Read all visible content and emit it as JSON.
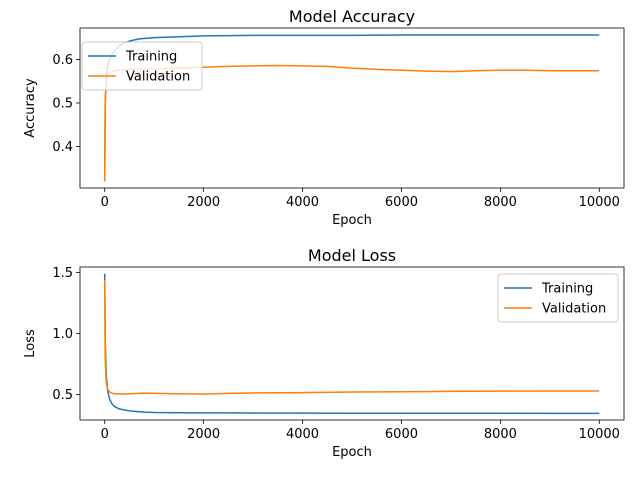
{
  "colors": {
    "training": "#1f77b4",
    "validation": "#ff7f0e",
    "axis": "#000000",
    "background": "#ffffff"
  },
  "chart_data": [
    {
      "type": "line",
      "title": "Model Accuracy",
      "xlabel": "Epoch",
      "ylabel": "Accuracy",
      "xlim": [
        -500,
        10500
      ],
      "ylim": [
        0.305,
        0.672
      ],
      "xticks": [
        0,
        2000,
        4000,
        6000,
        8000,
        10000
      ],
      "xtick_labels": [
        "0",
        "2000",
        "4000",
        "6000",
        "8000",
        "10000"
      ],
      "yticks": [
        0.4,
        0.5,
        0.6
      ],
      "ytick_labels": [
        "0.4",
        "0.5",
        "0.6"
      ],
      "grid": false,
      "legend": {
        "position": "upper left",
        "entries": [
          "Training",
          "Validation"
        ]
      },
      "series": [
        {
          "name": "Training",
          "color": "#1f77b4",
          "x": [
            0,
            10,
            30,
            60,
            100,
            150,
            200,
            300,
            400,
            500,
            700,
            1000,
            1500,
            2000,
            3000,
            4000,
            5000,
            6000,
            7000,
            8000,
            9000,
            10000
          ],
          "y": [
            0.33,
            0.5,
            0.56,
            0.585,
            0.6,
            0.612,
            0.62,
            0.632,
            0.638,
            0.642,
            0.647,
            0.65,
            0.652,
            0.654,
            0.655,
            0.655,
            0.655,
            0.656,
            0.656,
            0.656,
            0.656,
            0.656
          ]
        },
        {
          "name": "Validation",
          "color": "#ff7f0e",
          "x": [
            0,
            10,
            30,
            60,
            100,
            150,
            200,
            300,
            500,
            1000,
            1500,
            2000,
            2500,
            3000,
            3500,
            4000,
            4500,
            5000,
            5500,
            6000,
            6500,
            7000,
            7500,
            8000,
            8500,
            9000,
            9500,
            10000
          ],
          "y": [
            0.32,
            0.5,
            0.55,
            0.565,
            0.57,
            0.572,
            0.574,
            0.575,
            0.577,
            0.578,
            0.58,
            0.582,
            0.584,
            0.585,
            0.586,
            0.585,
            0.584,
            0.58,
            0.577,
            0.575,
            0.573,
            0.572,
            0.574,
            0.575,
            0.575,
            0.574,
            0.574,
            0.574
          ]
        }
      ]
    },
    {
      "type": "line",
      "title": "Model Loss",
      "xlabel": "Epoch",
      "ylabel": "Loss",
      "xlim": [
        -500,
        10500
      ],
      "ylim": [
        0.29,
        1.545
      ],
      "xticks": [
        0,
        2000,
        4000,
        6000,
        8000,
        10000
      ],
      "xtick_labels": [
        "0",
        "2000",
        "4000",
        "6000",
        "8000",
        "10000"
      ],
      "yticks": [
        0.5,
        1.0,
        1.5
      ],
      "ytick_labels": [
        "0.5",
        "1.0",
        "1.5"
      ],
      "grid": false,
      "legend": {
        "position": "upper right",
        "entries": [
          "Training",
          "Validation"
        ]
      },
      "series": [
        {
          "name": "Training",
          "color": "#1f77b4",
          "x": [
            0,
            10,
            30,
            60,
            100,
            150,
            200,
            300,
            500,
            800,
            1000,
            1500,
            2000,
            3000,
            4000,
            5000,
            6000,
            7000,
            8000,
            9000,
            10000
          ],
          "y": [
            1.49,
            0.95,
            0.66,
            0.53,
            0.46,
            0.42,
            0.4,
            0.38,
            0.365,
            0.355,
            0.352,
            0.35,
            0.348,
            0.347,
            0.346,
            0.345,
            0.345,
            0.345,
            0.345,
            0.344,
            0.344
          ]
        },
        {
          "name": "Validation",
          "color": "#ff7f0e",
          "x": [
            0,
            10,
            30,
            60,
            100,
            150,
            200,
            300,
            500,
            800,
            1000,
            1500,
            2000,
            2500,
            3000,
            4000,
            5000,
            6000,
            7000,
            8000,
            9000,
            10000
          ],
          "y": [
            1.44,
            0.8,
            0.6,
            0.54,
            0.52,
            0.51,
            0.505,
            0.503,
            0.505,
            0.51,
            0.508,
            0.505,
            0.503,
            0.508,
            0.512,
            0.515,
            0.52,
            0.522,
            0.525,
            0.527,
            0.528,
            0.528
          ]
        }
      ]
    }
  ]
}
